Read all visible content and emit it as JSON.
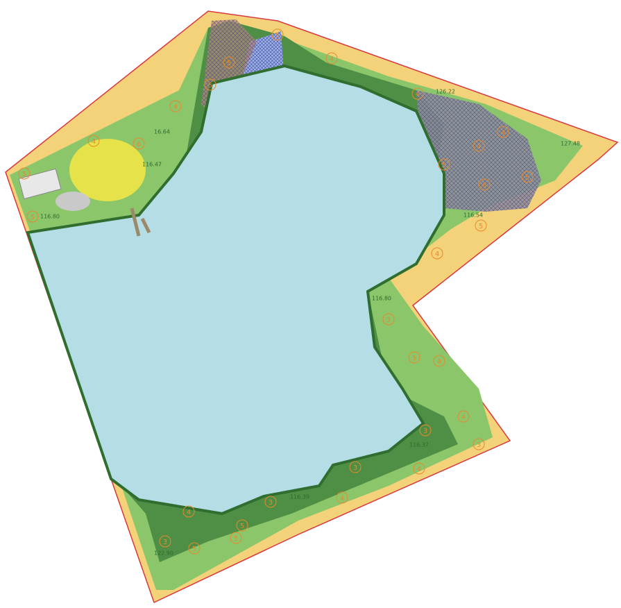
{
  "map": {
    "elevations": [
      "16.64",
      "116.47",
      "116.80",
      "126.22",
      "127.48",
      "116.54",
      "116.80",
      "116.37",
      "116.39",
      "122.90"
    ],
    "zones": [
      "4",
      "4",
      "6",
      "5",
      "5",
      "5",
      "5",
      "5",
      "4",
      "4",
      "5",
      "4",
      "4",
      "6",
      "5",
      "5",
      "4",
      "3",
      "5",
      "4",
      "3",
      "4",
      "3",
      "3",
      "4",
      "4",
      "3",
      "5",
      "4",
      "5",
      "3",
      "5"
    ]
  }
}
